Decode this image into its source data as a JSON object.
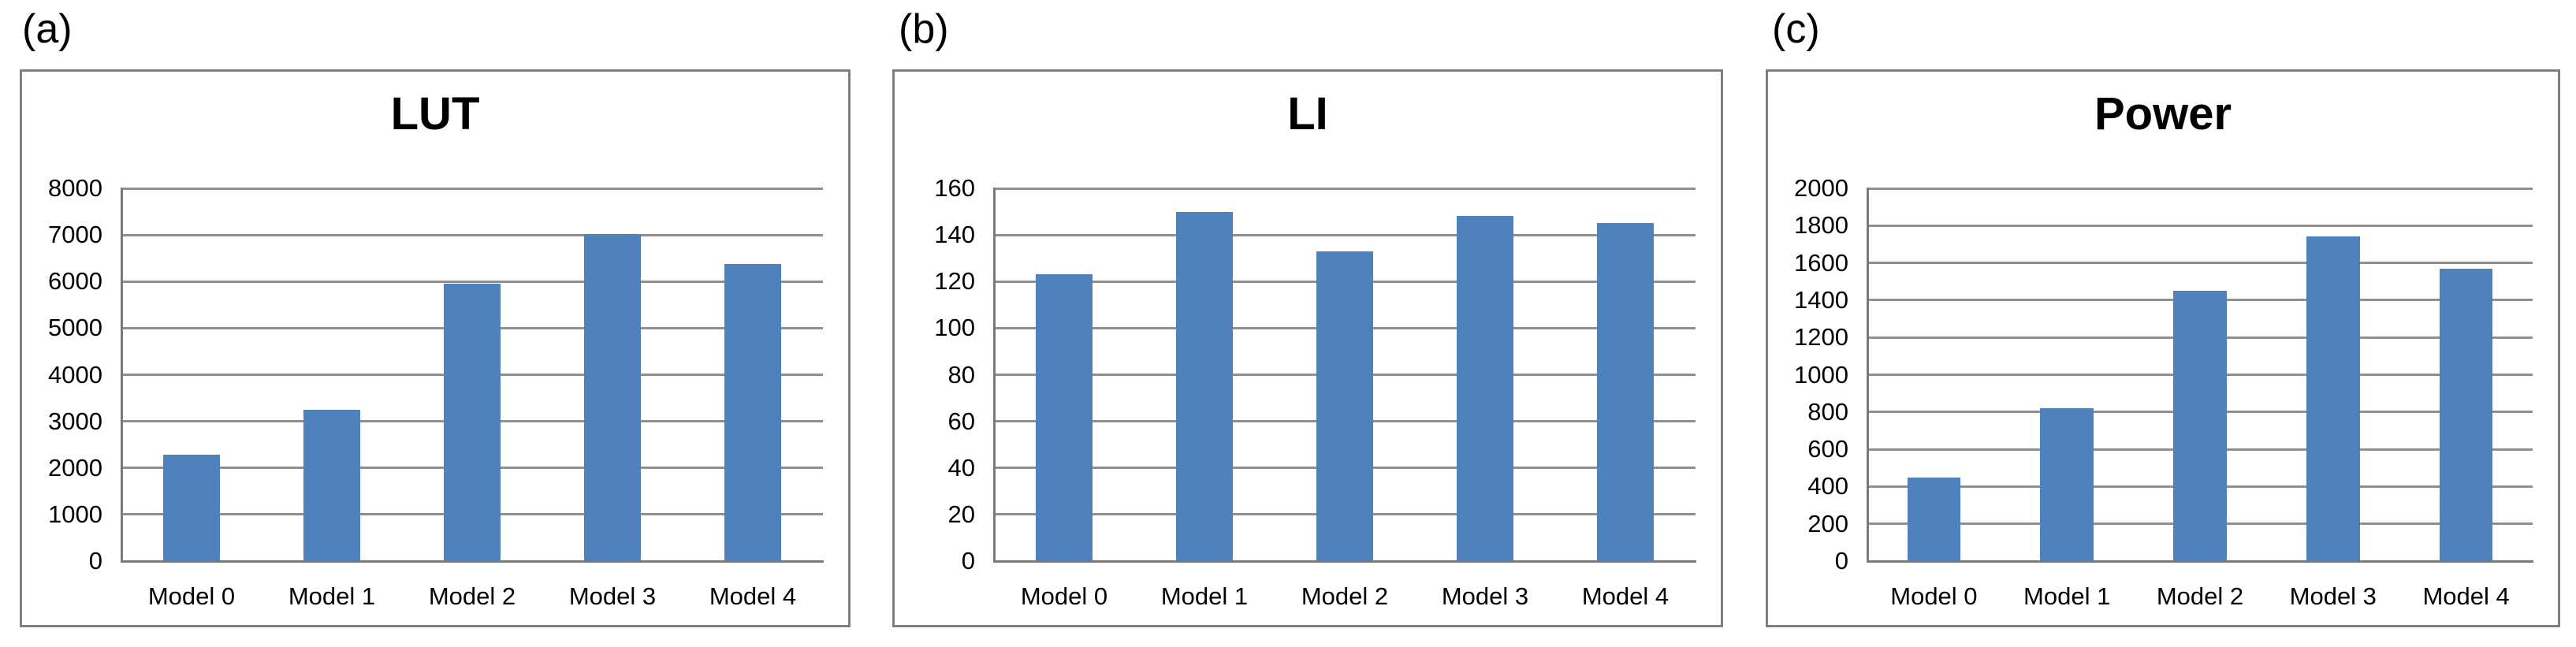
{
  "figure": {
    "panel_labels": [
      "(a)",
      "(b)",
      "(c)"
    ]
  },
  "colors": {
    "bar": "#4f81bd",
    "gridline": "#8f8f8f",
    "axis": "#7a7a7a",
    "panel_border": "#808080",
    "text": "#000000",
    "background": "#ffffff"
  },
  "chart_data": [
    {
      "type": "bar",
      "title": "LUT",
      "categories": [
        "Model 0",
        "Model 1",
        "Model 2",
        "Model 3",
        "Model 4"
      ],
      "values": [
        2290,
        3240,
        5950,
        7020,
        6370
      ],
      "xlabel": "",
      "ylabel": "",
      "ylim": [
        0,
        8000
      ],
      "ytick_step": 1000,
      "grid": true,
      "legend": "none"
    },
    {
      "type": "bar",
      "title": "LI",
      "categories": [
        "Model 0",
        "Model 1",
        "Model 2",
        "Model 3",
        "Model 4"
      ],
      "values": [
        123,
        150,
        133,
        148,
        145
      ],
      "xlabel": "",
      "ylabel": "",
      "ylim": [
        0,
        160
      ],
      "ytick_step": 20,
      "grid": true,
      "legend": "none"
    },
    {
      "type": "bar",
      "title": "Power",
      "categories": [
        "Model 0",
        "Model 1",
        "Model 2",
        "Model 3",
        "Model 4"
      ],
      "values": [
        450,
        820,
        1450,
        1740,
        1570
      ],
      "xlabel": "",
      "ylabel": "",
      "ylim": [
        0,
        2000
      ],
      "ytick_step": 200,
      "grid": true,
      "legend": "none"
    }
  ]
}
